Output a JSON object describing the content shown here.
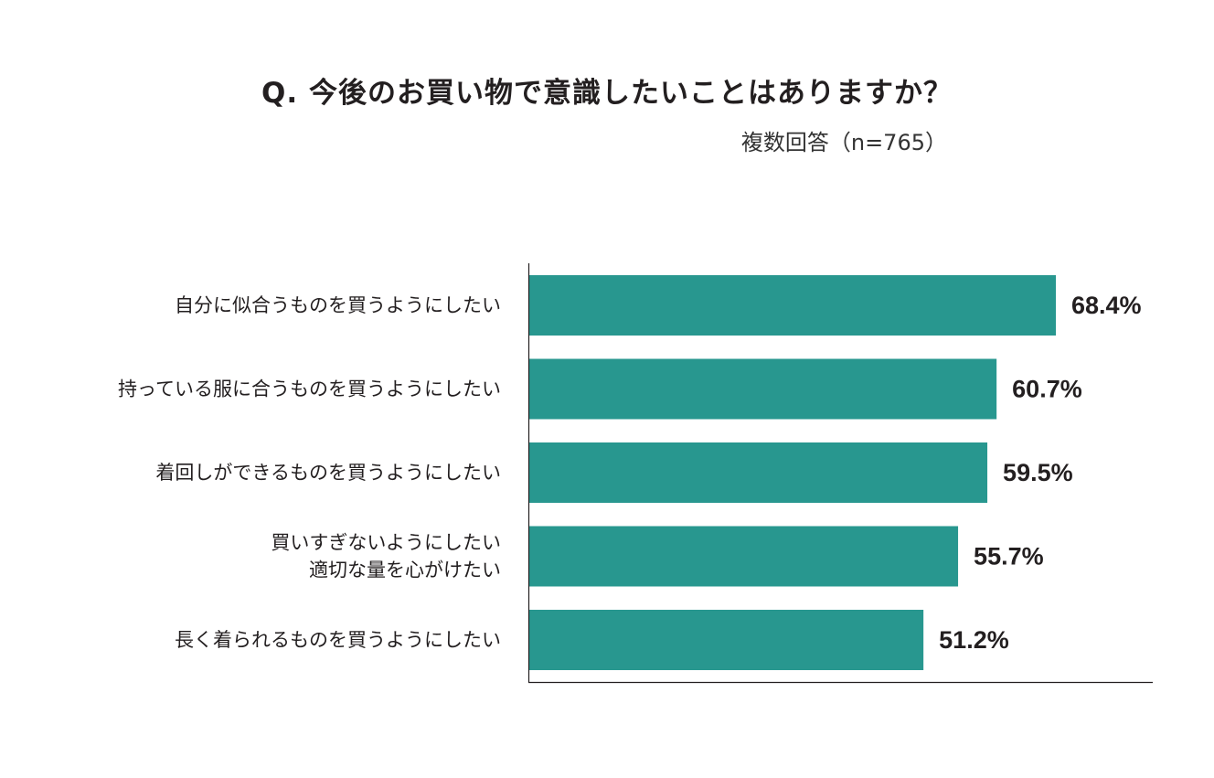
{
  "colors": {
    "bar": "#28978f",
    "axis": "#231f20",
    "text": "#231f20"
  },
  "chart_data": {
    "type": "bar",
    "orientation": "horizontal",
    "title": "Q. 今後のお買い物で意識したいことはありますか？",
    "subtitle": "複数回答（n=765）",
    "categories": [
      [
        "自分に似合うものを買うようにしたい"
      ],
      [
        "持っている服に合うものを買うようにしたい"
      ],
      [
        "着回しができるものを買うようにしたい"
      ],
      [
        "買いすぎないようにしたい",
        "適切な量を心がけたい"
      ],
      [
        "長く着られるものを買うようにしたい"
      ]
    ],
    "values": [
      68.4,
      60.7,
      59.5,
      55.7,
      51.2
    ],
    "value_labels": [
      "68.4%",
      "60.7%",
      "59.5%",
      "55.7%",
      "51.2%"
    ],
    "unit": "%",
    "xlim": [
      0,
      81
    ],
    "grid": false,
    "legend": "none"
  }
}
